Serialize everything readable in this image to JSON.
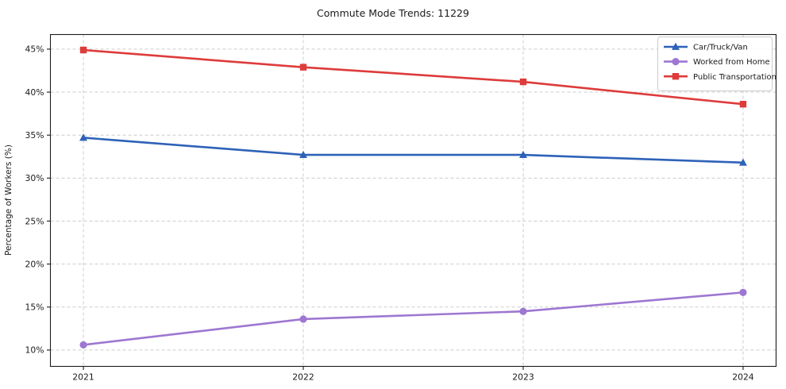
{
  "chart_data": {
    "type": "line",
    "title": "Commute Mode Trends: 11229",
    "xlabel": "",
    "ylabel": "Percentage of Workers (%)",
    "x": [
      2021,
      2022,
      2023,
      2024
    ],
    "x_tick_labels": [
      "2021",
      "2022",
      "2023",
      "2024"
    ],
    "y_ticks": [
      10,
      15,
      20,
      25,
      30,
      35,
      40,
      45
    ],
    "y_tick_suffix": "%",
    "xlim": [
      2020.85,
      2024.15
    ],
    "ylim": [
      8.1,
      46.7
    ],
    "grid": true,
    "grid_style": "dashed",
    "grid_color": "#cccccc",
    "axis_color": "#1a1a1a",
    "legend_position": "upper right",
    "series": [
      {
        "name": "Car/Truck/Van",
        "color": "#2e62b8",
        "marker": "triangle",
        "values": [
          34.7,
          32.7,
          32.7,
          31.8
        ]
      },
      {
        "name": "Worked from Home",
        "color": "#9d77d1",
        "marker": "circle",
        "values": [
          10.6,
          13.6,
          14.5,
          16.7
        ]
      },
      {
        "name": "Public Transportation",
        "color": "#de3b3b",
        "marker": "square",
        "values": [
          44.9,
          42.9,
          41.2,
          38.6
        ]
      }
    ]
  }
}
